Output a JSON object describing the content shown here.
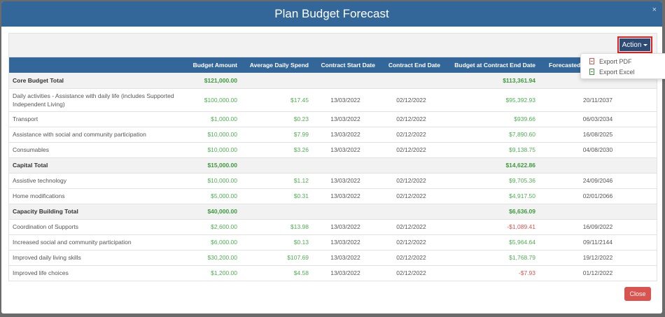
{
  "modal": {
    "title": "Plan Budget Forecast",
    "close_x": "×",
    "close_label": "Close"
  },
  "toolbar": {
    "action_label": "Action"
  },
  "dropdown": {
    "items": [
      {
        "label": "Export PDF",
        "icon": "pdf-file-icon"
      },
      {
        "label": "Export Excel",
        "icon": "excel-file-icon"
      }
    ]
  },
  "table": {
    "headers": [
      "",
      "Budget Amount",
      "Average Daily Spend",
      "Contract Start Date",
      "Contract End Date",
      "Budget at Contract End Date",
      "Forecasted Budget End Date"
    ],
    "rows": [
      {
        "type": "subtotal",
        "name": "Core Budget Total",
        "budget": "$121,000.00",
        "avg": "",
        "start": "",
        "end": "",
        "at_end": "$113,361.94",
        "forecast": ""
      },
      {
        "type": "item",
        "tall": true,
        "name": "Daily activities - Assistance with daily life (includes Supported Independent Living)",
        "budget": "$100,000.00",
        "avg": "$17.45",
        "start": "13/03/2022",
        "end": "02/12/2022",
        "at_end": "$95,392.93",
        "forecast": "20/11/2037"
      },
      {
        "type": "item",
        "name": "Transport",
        "budget": "$1,000.00",
        "avg": "$0.23",
        "start": "13/03/2022",
        "end": "02/12/2022",
        "at_end": "$939.66",
        "forecast": "06/03/2034"
      },
      {
        "type": "item",
        "name": "Assistance with social and community participation",
        "budget": "$10,000.00",
        "avg": "$7.99",
        "start": "13/03/2022",
        "end": "02/12/2022",
        "at_end": "$7,890.60",
        "forecast": "16/08/2025"
      },
      {
        "type": "item",
        "name": "Consumables",
        "budget": "$10,000.00",
        "avg": "$3.26",
        "start": "13/03/2022",
        "end": "02/12/2022",
        "at_end": "$9,138.75",
        "forecast": "04/08/2030"
      },
      {
        "type": "subtotal",
        "name": "Capital Total",
        "budget": "$15,000.00",
        "avg": "",
        "start": "",
        "end": "",
        "at_end": "$14,622.86",
        "forecast": ""
      },
      {
        "type": "item",
        "name": "Assistive technology",
        "budget": "$10,000.00",
        "avg": "$1.12",
        "start": "13/03/2022",
        "end": "02/12/2022",
        "at_end": "$9,705.36",
        "forecast": "24/09/2046"
      },
      {
        "type": "item",
        "name": "Home modifications",
        "budget": "$5,000.00",
        "avg": "$0.31",
        "start": "13/03/2022",
        "end": "02/12/2022",
        "at_end": "$4,917.50",
        "forecast": "02/01/2066"
      },
      {
        "type": "subtotal",
        "name": "Capacity Building Total",
        "budget": "$40,000.00",
        "avg": "",
        "start": "",
        "end": "",
        "at_end": "$6,636.09",
        "forecast": ""
      },
      {
        "type": "item",
        "name": "Coordination of Supports",
        "budget": "$2,600.00",
        "avg": "$13.98",
        "start": "13/03/2022",
        "end": "02/12/2022",
        "at_end": "-$1,089.41",
        "negative": true,
        "forecast": "16/09/2022"
      },
      {
        "type": "item",
        "name": "Increased social and community participation",
        "budget": "$6,000.00",
        "avg": "$0.13",
        "start": "13/03/2022",
        "end": "02/12/2022",
        "at_end": "$5,964.64",
        "forecast": "09/11/2144"
      },
      {
        "type": "item",
        "name": "Improved daily living skills",
        "budget": "$30,200.00",
        "avg": "$107.69",
        "start": "13/03/2022",
        "end": "02/12/2022",
        "at_end": "$1,768.79",
        "forecast": "19/12/2022"
      },
      {
        "type": "item",
        "name": "Improved life choices",
        "budget": "$1,200.00",
        "avg": "$4.58",
        "start": "13/03/2022",
        "end": "02/12/2022",
        "at_end": "-$7.93",
        "negative": true,
        "forecast": "01/12/2022"
      }
    ]
  },
  "colors": {
    "header": "#336799",
    "action": "#2d4b74",
    "positive": "#4caf50",
    "negative": "#d9534f",
    "close": "#d9534f"
  }
}
